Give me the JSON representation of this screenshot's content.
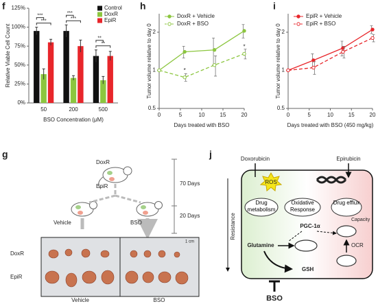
{
  "chart_data": [
    {
      "type": "bar",
      "panel": "f",
      "x_label": "BSO Concentration (μM)",
      "y_label": "Relative Viable Cell Count",
      "categories": [
        "50",
        "200",
        "500"
      ],
      "series": [
        {
          "name": "Control",
          "color": "#111111",
          "values": [
            95,
            95,
            62
          ],
          "errors": [
            5,
            8,
            8
          ]
        },
        {
          "name": "DoxR",
          "color": "#8cc63f",
          "values": [
            38,
            33,
            30
          ],
          "errors": [
            7,
            3,
            5
          ]
        },
        {
          "name": "EpiR",
          "color": "#e8262b",
          "values": [
            80,
            75,
            62
          ],
          "errors": [
            4,
            8,
            6
          ]
        }
      ],
      "ylim": [
        0,
        125
      ],
      "yticks": [
        {
          "value": 0,
          "label": "0%"
        },
        {
          "value": 25,
          "label": "25%"
        },
        {
          "value": 50,
          "label": "50%"
        },
        {
          "value": 75,
          "label": "75%"
        },
        {
          "value": 100,
          "label": "100%"
        },
        {
          "value": 125,
          "label": "125%"
        }
      ],
      "annotations": [
        "***",
        "***",
        "***",
        "***",
        "**",
        "**"
      ]
    },
    {
      "type": "line",
      "panel": "h",
      "x_label": "Days treated with BSO",
      "y_label": "Tumor volume relative to day 0",
      "x": [
        0,
        6,
        13,
        20
      ],
      "xlim": [
        0,
        20
      ],
      "xticks": [
        0,
        5,
        10,
        15,
        20
      ],
      "y_scale": "log",
      "ylim": [
        0.5,
        2.8
      ],
      "yticks": [
        0.5,
        1,
        2
      ],
      "series": [
        {
          "name": "DoxR + Vehicle",
          "color": "#8cc63f",
          "line_style": "solid",
          "marker": "filled",
          "values": [
            1,
            1.4,
            1.45,
            2.05
          ],
          "errors": [
            0,
            0.15,
            0.35,
            0.25
          ]
        },
        {
          "name": "DoxR + BSO",
          "color": "#8cc63f",
          "line_style": "dashed",
          "marker": "open",
          "values": [
            1,
            0.88,
            1.1,
            1.35
          ],
          "errors": [
            0,
            0.06,
            0.2,
            0.12
          ]
        }
      ],
      "annotations": [
        "*",
        "*"
      ]
    },
    {
      "type": "line",
      "panel": "i",
      "x_label": "Days treated with BSO (450 mg/kg)",
      "y_label": "Tumor volume relative to day 0",
      "x": [
        0,
        6,
        13,
        20
      ],
      "xlim": [
        0,
        20
      ],
      "xticks": [
        0,
        5,
        10,
        15,
        20
      ],
      "y_scale": "log",
      "ylim": [
        0.5,
        2.8
      ],
      "yticks": [
        0.5,
        1,
        2
      ],
      "series": [
        {
          "name": "EpiR + Vehicle",
          "color": "#e8262b",
          "line_style": "solid",
          "marker": "filled",
          "values": [
            1,
            1.2,
            1.5,
            2.1
          ],
          "errors": [
            0,
            0.15,
            0.2,
            0.15
          ]
        },
        {
          "name": "EpiR + BSO",
          "color": "#e8262b",
          "line_style": "dashed",
          "marker": "open",
          "values": [
            1,
            1.05,
            1.4,
            1.8
          ],
          "errors": [
            0,
            0.12,
            0.15,
            0.12
          ]
        }
      ],
      "annotations": []
    }
  ],
  "panel_g": {
    "panel": "g",
    "parent": [
      "DoxR",
      "EpiR"
    ],
    "durations": [
      "70 Days",
      "20 Days"
    ],
    "treatments": [
      "Vehicle",
      "BSO"
    ],
    "scale": "1 cm",
    "rows": [
      "DoxR",
      "EpiR"
    ],
    "columns": [
      "Vehicle",
      "BSO"
    ]
  },
  "panel_j": {
    "panel": "j",
    "drugs": [
      "Doxorubicin",
      "Epirubicin"
    ],
    "ros": "ROS",
    "processes": [
      "Drug metabolism",
      "Oxidative Response",
      "Drug efflux"
    ],
    "pgc": "PGC-1α",
    "capacity": "Capacity",
    "ocr": "OCR",
    "glutamine": "Glutamine",
    "gsh": "GSH",
    "resistance": "Resistance",
    "inhibitor": "BSO"
  }
}
